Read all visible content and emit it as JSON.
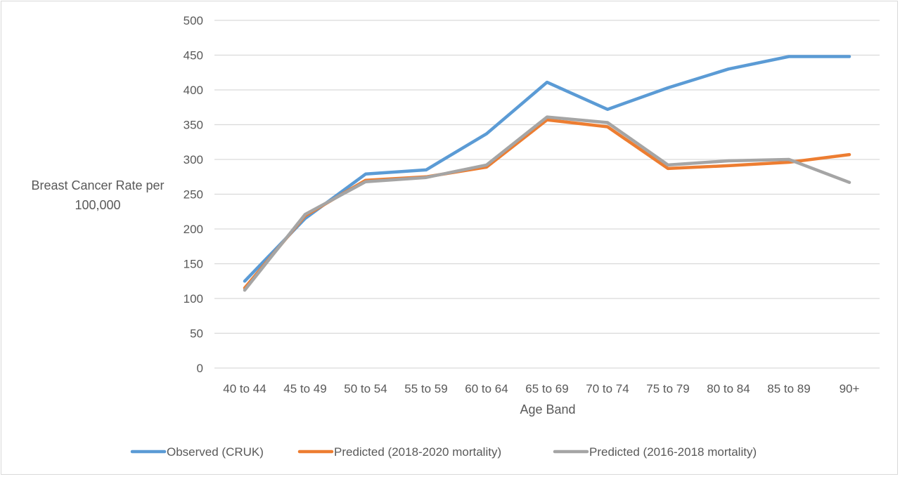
{
  "chart_data": {
    "type": "line",
    "title": "",
    "xlabel": "Age Band",
    "ylabel": "Breast Cancer Rate per 100,000",
    "ylabel_lines": [
      "Breast Cancer Rate per",
      "100,000"
    ],
    "ylim": [
      0,
      500
    ],
    "yticks": [
      0,
      50,
      100,
      150,
      200,
      250,
      300,
      350,
      400,
      450,
      500
    ],
    "ytick_labels": [
      "0",
      "50",
      "100",
      "150",
      "200",
      "250",
      "300",
      "350",
      "400",
      "450",
      "500"
    ],
    "grid": true,
    "legend_position": "bottom",
    "categories": [
      "40 to 44",
      "45 to 49",
      "50 to 54",
      "55 to 59",
      "60 to 64",
      "65 to 69",
      "70 to 74",
      "75 to 79",
      "80 to 84",
      "85 to 89",
      "90+"
    ],
    "series": [
      {
        "name": "Observed (CRUK)",
        "color": "#5b9bd5",
        "values": [
          125,
          215,
          279,
          285,
          337,
          411,
          372,
          403,
          430,
          448,
          448
        ]
      },
      {
        "name": "Predicted (2018-2020 mortality)",
        "color": "#ed7d31",
        "values": [
          115,
          219,
          270,
          275,
          289,
          357,
          347,
          287,
          291,
          296,
          307
        ]
      },
      {
        "name": "Predicted (2016-2018 mortality)",
        "color": "#a5a5a5",
        "values": [
          112,
          221,
          268,
          274,
          292,
          361,
          353,
          292,
          298,
          300,
          267
        ]
      }
    ]
  }
}
